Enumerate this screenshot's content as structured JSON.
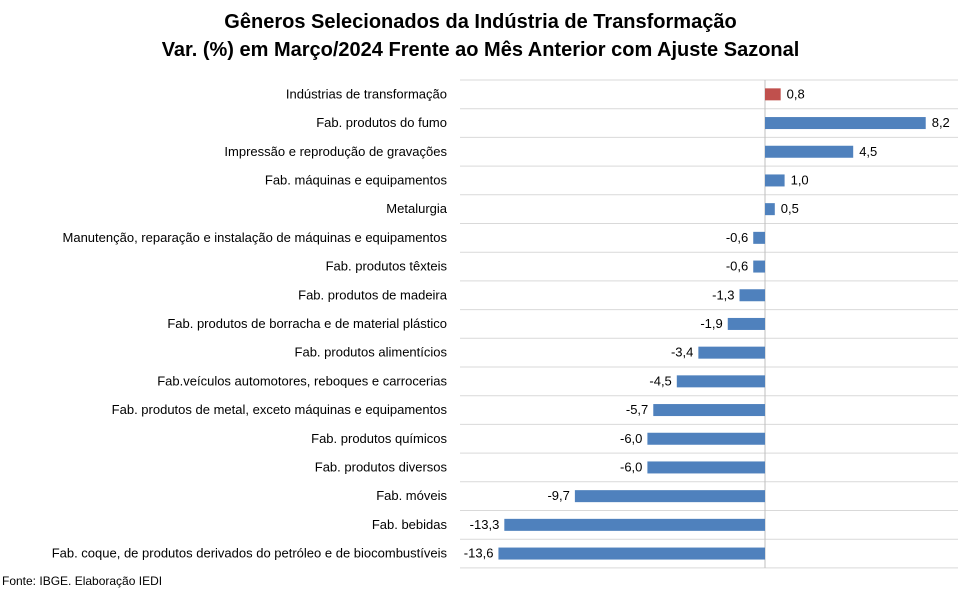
{
  "chart_data": {
    "type": "bar",
    "orientation": "horizontal",
    "title": "Gêneros Selecionados da Indústria de Transformação",
    "subtitle": "Var. (%) em Março/2024 Frente ao Mês Anterior com Ajuste Sazonal",
    "categories": [
      "Indústrias de transformação",
      "Fab. produtos do fumo",
      "Impressão e reprodução de gravações",
      "Fab. máquinas e equipamentos",
      "Metalurgia",
      "Manutenção, reparação e instalação de máquinas e equipamentos",
      "Fab. produtos têxteis",
      "Fab. produtos de madeira",
      "Fab. produtos de borracha e de material plástico",
      "Fab. produtos alimentícios",
      "Fab.veículos automotores, reboques e carrocerias",
      "Fab. produtos de metal, exceto máquinas e equipamentos",
      "Fab. produtos químicos",
      "Fab. produtos diversos",
      "Fab. móveis",
      "Fab. bebidas",
      "Fab. coque, de produtos derivados do petróleo e de biocombustíveis"
    ],
    "values": [
      0.8,
      8.2,
      4.5,
      1.0,
      0.5,
      -0.6,
      -0.6,
      -1.3,
      -1.9,
      -3.4,
      -4.5,
      -5.7,
      -6.0,
      -6.0,
      -9.7,
      -13.3,
      -13.6
    ],
    "data_labels": [
      "0,8",
      "8,2",
      "4,5",
      "1,0",
      "0,5",
      "-0,6",
      "-0,6",
      "-1,3",
      "-1,9",
      "-3,4",
      "-4,5",
      "-5,7",
      "-6,0",
      "-6,0",
      "-9,7",
      "-13,3",
      "-13,6"
    ],
    "xlim": [
      -14,
      10
    ],
    "grid": true,
    "colors": {
      "highlight": "#C0504D",
      "default": "#4F81BD",
      "grid": "#D9D9D9",
      "axis": "#BFBFBF"
    }
  },
  "source": "Fonte: IBGE. Elaboração IEDI"
}
